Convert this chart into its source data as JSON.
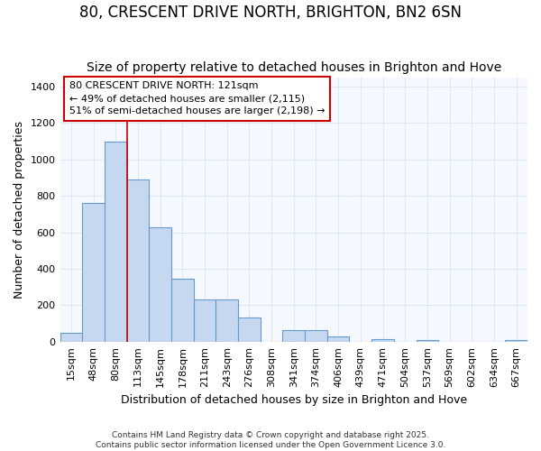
{
  "title": "80, CRESCENT DRIVE NORTH, BRIGHTON, BN2 6SN",
  "subtitle": "Size of property relative to detached houses in Brighton and Hove",
  "xlabel": "Distribution of detached houses by size in Brighton and Hove",
  "ylabel": "Number of detached properties",
  "categories": [
    "15sqm",
    "48sqm",
    "80sqm",
    "113sqm",
    "145sqm",
    "178sqm",
    "211sqm",
    "243sqm",
    "276sqm",
    "308sqm",
    "341sqm",
    "374sqm",
    "406sqm",
    "439sqm",
    "471sqm",
    "504sqm",
    "537sqm",
    "569sqm",
    "602sqm",
    "634sqm",
    "667sqm"
  ],
  "values": [
    50,
    760,
    1100,
    890,
    630,
    348,
    232,
    232,
    132,
    0,
    65,
    65,
    28,
    0,
    15,
    0,
    8,
    0,
    0,
    0,
    10
  ],
  "bar_color": "#c5d8f0",
  "bar_edge_color": "#6699cc",
  "background_color": "#ffffff",
  "plot_bg_color": "#f5f8ff",
  "grid_color": "#dde8f5",
  "vline_x": 2.5,
  "vline_color": "#cc0000",
  "annotation_text": "80 CRESCENT DRIVE NORTH: 121sqm\n← 49% of detached houses are smaller (2,115)\n51% of semi-detached houses are larger (2,198) →",
  "annotation_box_color": "#ffffff",
  "annotation_box_edge": "#cc0000",
  "ylim": [
    0,
    1450
  ],
  "yticks": [
    0,
    200,
    400,
    600,
    800,
    1000,
    1200,
    1400
  ],
  "footer": "Contains HM Land Registry data © Crown copyright and database right 2025.\nContains public sector information licensed under the Open Government Licence 3.0.",
  "title_fontsize": 12,
  "subtitle_fontsize": 10,
  "axis_label_fontsize": 9,
  "tick_fontsize": 8
}
